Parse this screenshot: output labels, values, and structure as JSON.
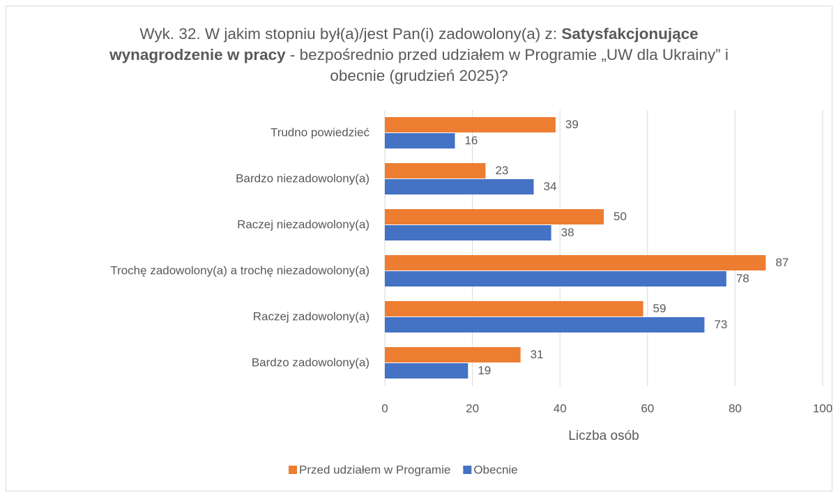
{
  "chart_data": {
    "type": "hbar",
    "title": [
      "Wyk. 32. W jakim stopniu był(a)/jest Pan(i) zadowolony(a) z: ",
      "Satysfakcjonujące wynagrodzenie w pracy",
      " - bezpośrednio przed udziałem w Programie „UW dla Ukrainy” i obecnie (grudzień 2025)?"
    ],
    "title_bold": [
      false,
      true,
      false
    ],
    "x_label": "Liczba osób",
    "categories": [
      "Trudno powiedzieć",
      "Bardzo niezadowolony(a)",
      "Raczej niezadowolony(a)",
      "Trochę zadowolony(a) a trochę niezadowolony(a)",
      "Raczej zadowolony(a)",
      "Bardzo zadowolony(a)"
    ],
    "series": [
      {
        "name": "Przed udziałem w Programie",
        "color": "#ED7D31",
        "values": [
          39,
          23,
          50,
          87,
          59,
          31
        ]
      },
      {
        "name": "Obecnie",
        "color": "#4472C4",
        "values": [
          16,
          34,
          38,
          78,
          73,
          19
        ]
      }
    ],
    "xlim": [
      0,
      100
    ],
    "xticks": [
      0,
      20,
      40,
      60,
      80,
      100
    ],
    "grid": true,
    "legend": "bottom"
  }
}
